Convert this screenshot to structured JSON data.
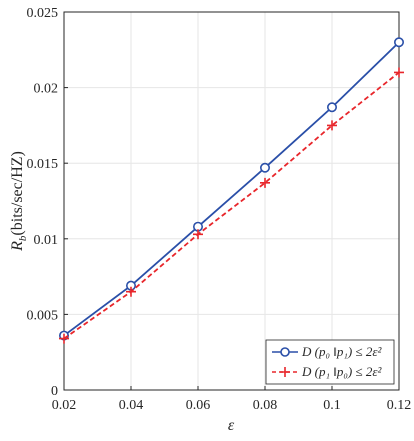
{
  "chart_data": {
    "type": "line",
    "title": "",
    "xlabel": "ε",
    "ylabel": "R_b(bits/sec/HZ)",
    "ylabel_parts": {
      "symbol": "R",
      "subscript": "b",
      "unit": "(bits/sec/HZ)"
    },
    "xlim": [
      0.02,
      0.12
    ],
    "ylim": [
      0,
      0.025
    ],
    "x_ticks": [
      "0.02",
      "0.04",
      "0.06",
      "0.08",
      "0.1",
      "0.12"
    ],
    "y_ticks": [
      "0",
      "0.005",
      "0.01",
      "0.015",
      "0.02",
      "0.025"
    ],
    "grid": true,
    "legend_position": "bottom-right",
    "x": [
      0.02,
      0.04,
      0.06,
      0.08,
      0.1,
      0.12
    ],
    "series": [
      {
        "name": "D (p₀ ‖p₁) ≤ 2ε²",
        "values": [
          0.0036,
          0.0069,
          0.0108,
          0.0147,
          0.0187,
          0.023
        ],
        "color": "#2a4fa8",
        "line_style": "solid",
        "marker": "circle"
      },
      {
        "name": "D (p₁ ‖p₀) ≤ 2ε²",
        "values": [
          0.0034,
          0.0065,
          0.0103,
          0.0137,
          0.0175,
          0.021
        ],
        "color": "#e8262b",
        "line_style": "dashed",
        "marker": "plus"
      }
    ]
  }
}
